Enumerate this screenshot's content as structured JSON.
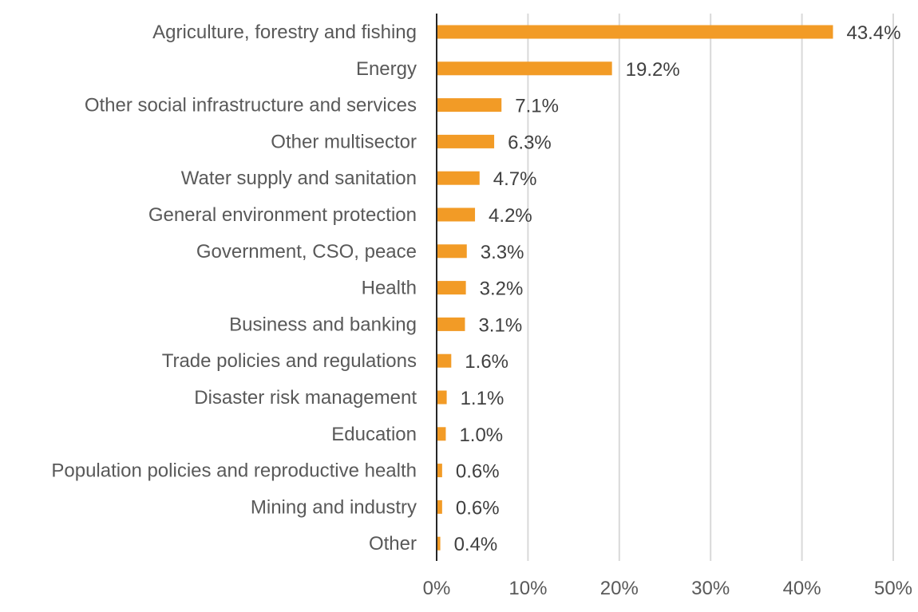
{
  "chart_data": {
    "type": "bar",
    "orientation": "horizontal",
    "categories": [
      "Agriculture, forestry and fishing",
      "Energy",
      "Other social infrastructure and services",
      "Other multisector",
      "Water supply and sanitation",
      "General environment protection",
      "Government, CSO, peace",
      "Health",
      "Business and banking",
      "Trade policies and regulations",
      "Disaster risk management",
      "Education",
      "Population policies and reproductive health",
      "Mining and industry",
      "Other"
    ],
    "values": [
      43.4,
      19.2,
      7.1,
      6.3,
      4.7,
      4.2,
      3.3,
      3.2,
      3.1,
      1.6,
      1.1,
      1.0,
      0.6,
      0.6,
      0.4
    ],
    "data_labels": [
      "43.4%",
      "19.2%",
      "7.1%",
      "6.3%",
      "4.7%",
      "4.2%",
      "3.3%",
      "3.2%",
      "3.1%",
      "1.6%",
      "1.1%",
      "1.0%",
      "0.6%",
      "0.6%",
      "0.4%"
    ],
    "x_ticks": [
      0,
      10,
      20,
      30,
      40,
      50
    ],
    "x_tick_labels": [
      "0%",
      "10%",
      "20%",
      "30%",
      "40%",
      "50%"
    ],
    "xlim": [
      0,
      50
    ],
    "title": "",
    "xlabel": "",
    "ylabel": "",
    "grid": "vertical",
    "legend": "none",
    "bar_color": "#f29b26",
    "axis_color": "#262626",
    "grid_color": "#d9d9d9",
    "label_color": "#595959",
    "value_label_color": "#404040"
  }
}
